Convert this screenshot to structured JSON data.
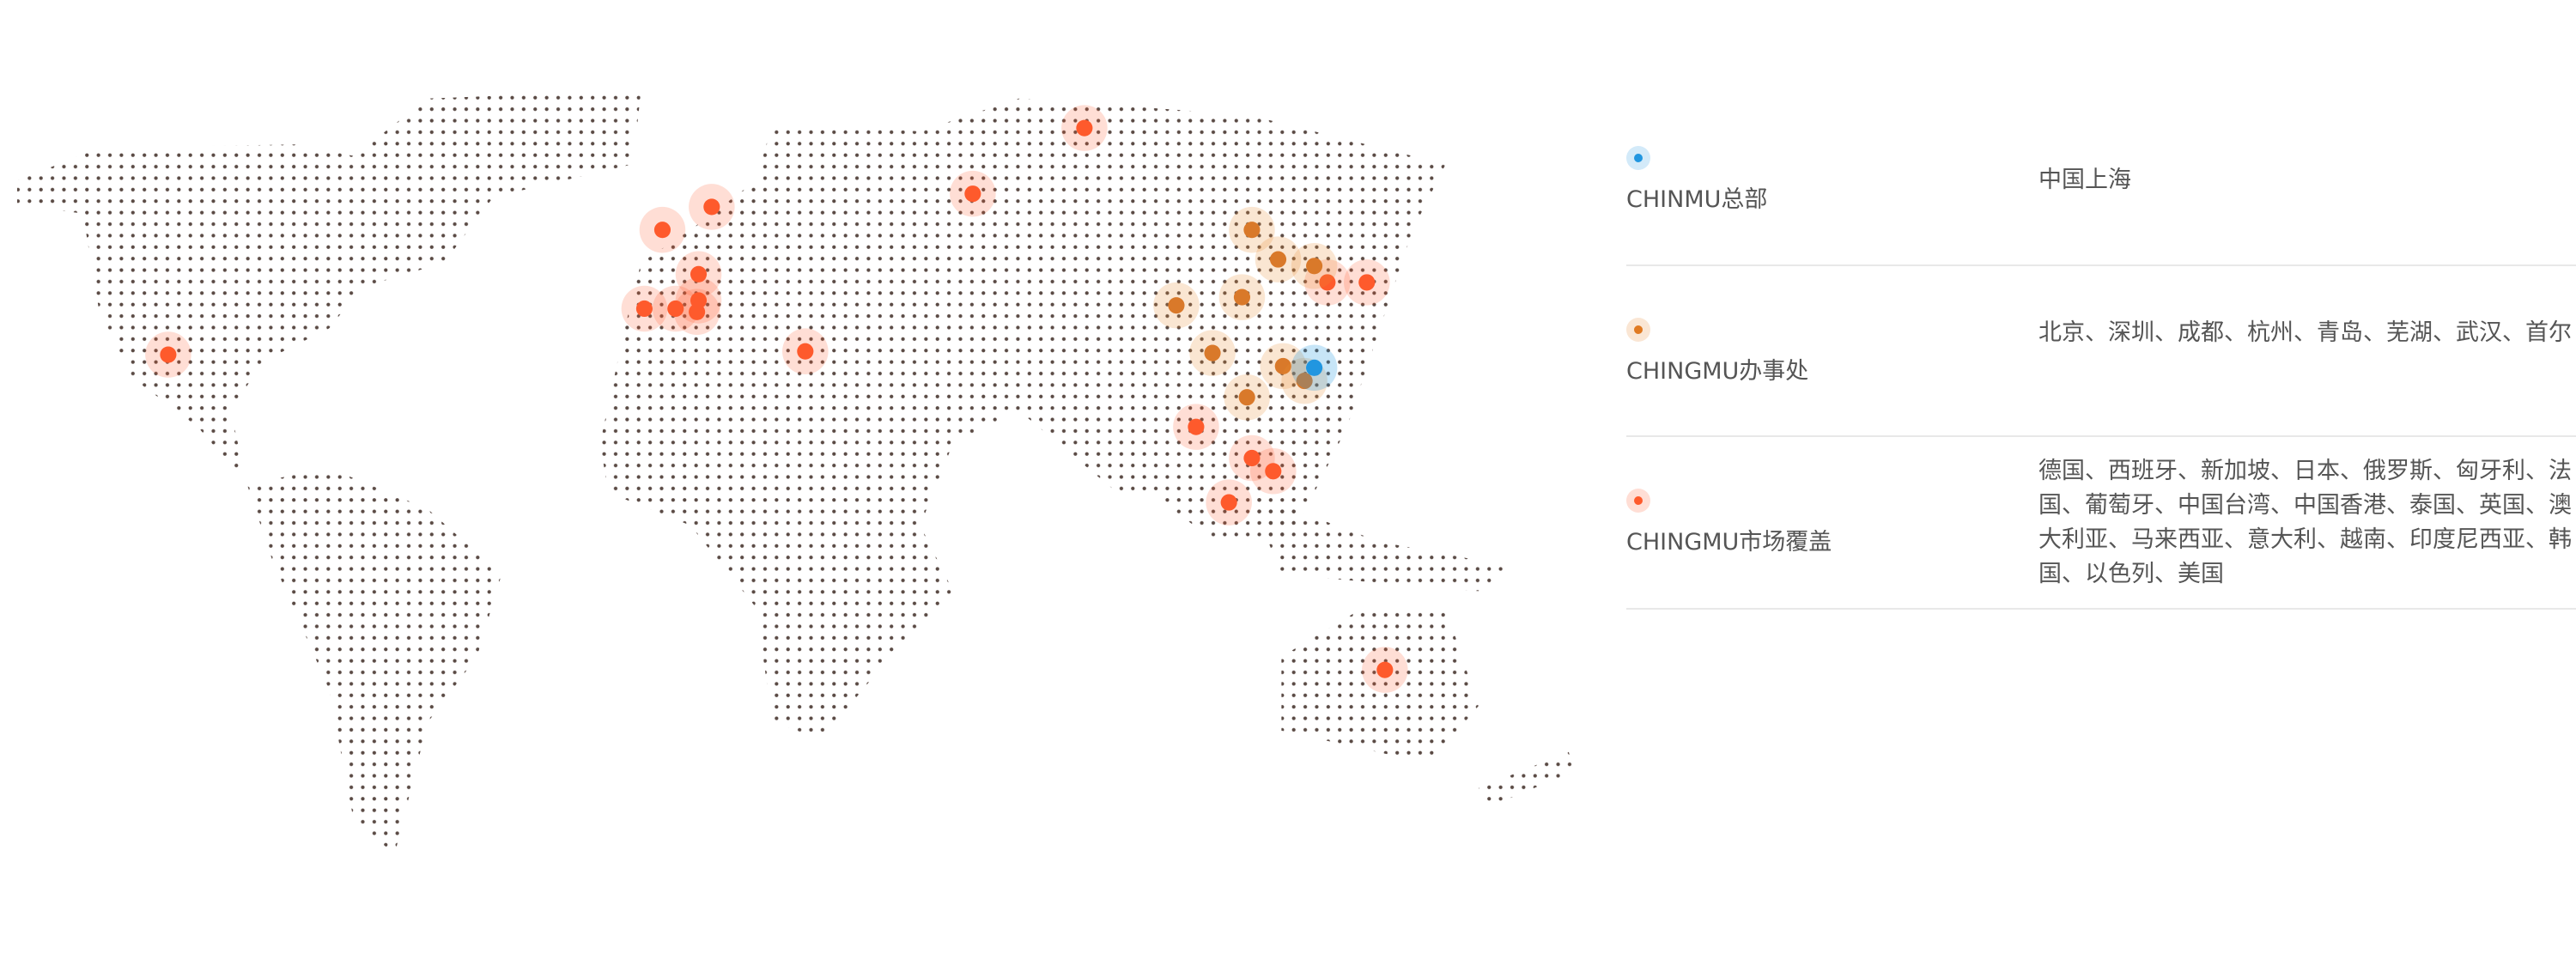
{
  "legend": {
    "rows": [
      {
        "label": "CHINMU总部",
        "value": "中国上海"
      },
      {
        "label": "CHINGMU办事处",
        "value": "北京、深圳、成都、杭州、青岛、芜湖、武汉、首尔"
      },
      {
        "label": "CHINGMU市场覆盖",
        "value": "德国、西班牙、新加坡、日本、俄罗斯、匈牙利、法国、葡萄牙、中国台湾、中国香港、泰国、英国、澳大利亚、马来西亚、意大利、越南、印度尼西亚、韩国、以色列、美国"
      }
    ]
  }
}
